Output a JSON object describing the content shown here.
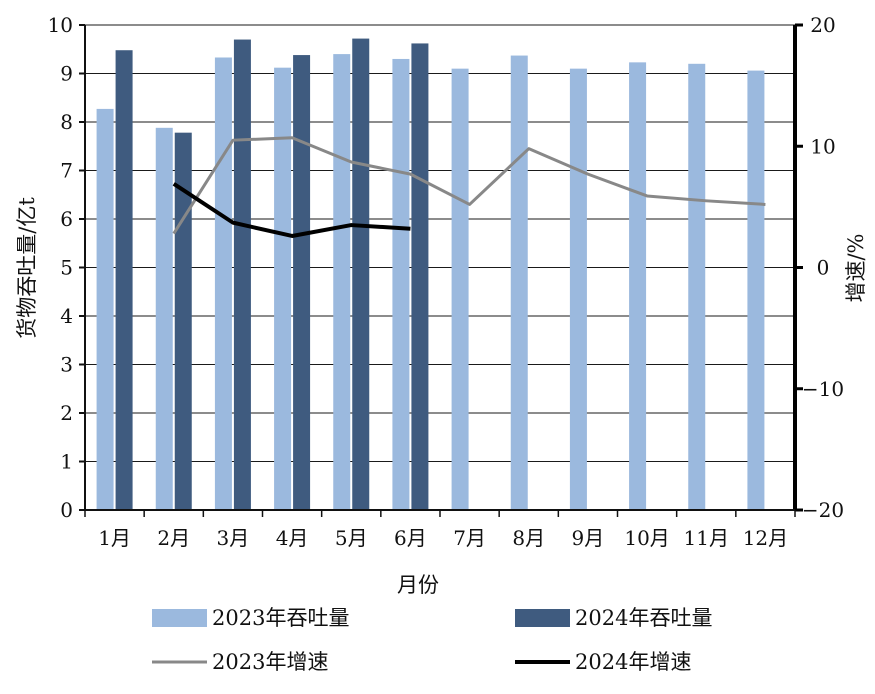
{
  "chart_data": {
    "type": "bar",
    "categories": [
      "1月",
      "2月",
      "3月",
      "4月",
      "5月",
      "6月",
      "7月",
      "8月",
      "9月",
      "10月",
      "11月",
      "12月"
    ],
    "xlabel": "月份",
    "ylabel": "货物吞吐量/亿t",
    "y2label": "增速/%",
    "ylim": [
      0,
      10
    ],
    "y2lim": [
      -20,
      20
    ],
    "yticks": [
      "0",
      "1",
      "2",
      "3",
      "4",
      "5",
      "6",
      "7",
      "8",
      "9",
      "10"
    ],
    "y2ticks": [
      "−20",
      "−10",
      "0",
      "10",
      "20"
    ],
    "grid": true,
    "legend_position": "bottom",
    "series": [
      {
        "name": "2023年吞吐量",
        "kind": "bar",
        "axis": "left",
        "color": "#9bb9de",
        "values": [
          8.27,
          7.88,
          9.33,
          9.12,
          9.4,
          9.3,
          9.1,
          9.37,
          9.1,
          9.23,
          9.2,
          9.06
        ]
      },
      {
        "name": "2024年吞吐量",
        "kind": "bar",
        "axis": "left",
        "color": "#3f5b7f",
        "values": [
          9.48,
          7.78,
          9.7,
          9.38,
          9.72,
          9.62,
          null,
          null,
          null,
          null,
          null,
          null
        ]
      },
      {
        "name": "2023年增速",
        "kind": "line",
        "axis": "right",
        "color": "#888888",
        "values": [
          null,
          2.8,
          10.5,
          10.7,
          8.7,
          7.7,
          5.2,
          9.8,
          7.7,
          5.9,
          5.5,
          5.2
        ]
      },
      {
        "name": "2024年增速",
        "kind": "line",
        "axis": "right",
        "color": "#000000",
        "values": [
          null,
          6.9,
          3.7,
          2.6,
          3.5,
          3.2,
          null,
          null,
          null,
          null,
          null,
          null
        ]
      }
    ]
  }
}
